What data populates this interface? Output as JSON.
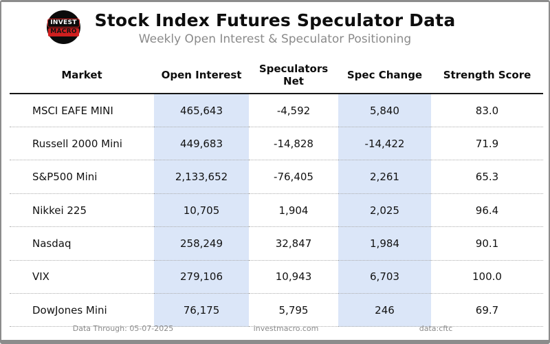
{
  "header": {
    "title": "Stock Index Futures Speculator Data",
    "subtitle": "Weekly Open Interest & Speculator Positioning",
    "logo": {
      "line1": "INVEST",
      "line2": "MACRO"
    }
  },
  "table": {
    "columns": [
      "Market",
      "Open Interest",
      "Speculators Net",
      "Spec Change",
      "Strength Score"
    ],
    "rows": [
      {
        "market": "MSCI EAFE MINI",
        "open_interest": "465,643",
        "speculators_net": "-4,592",
        "spec_change": "5,840",
        "strength_score": "83.0"
      },
      {
        "market": "Russell 2000 Mini",
        "open_interest": "449,683",
        "speculators_net": "-14,828",
        "spec_change": "-14,422",
        "strength_score": "71.9"
      },
      {
        "market": "S&P500 Mini",
        "open_interest": "2,133,652",
        "speculators_net": "-76,405",
        "spec_change": "2,261",
        "strength_score": "65.3"
      },
      {
        "market": "Nikkei 225",
        "open_interest": "10,705",
        "speculators_net": "1,904",
        "spec_change": "2,025",
        "strength_score": "96.4"
      },
      {
        "market": "Nasdaq",
        "open_interest": "258,249",
        "speculators_net": "32,847",
        "spec_change": "1,984",
        "strength_score": "90.1"
      },
      {
        "market": "VIX",
        "open_interest": "279,106",
        "speculators_net": "10,943",
        "spec_change": "6,703",
        "strength_score": "100.0"
      },
      {
        "market": "DowJones Mini",
        "open_interest": "76,175",
        "speculators_net": "5,795",
        "spec_change": "246",
        "strength_score": "69.7"
      }
    ]
  },
  "footer": {
    "data_through": "Data Through: 05-07-2025",
    "site": "investmacro.com",
    "source": "data:cftc"
  },
  "colors": {
    "band_highlight": "#dbe6f8",
    "accent_red": "#cf1f1f",
    "muted_text": "#8a8a8a",
    "border_gray": "#8c8c8c"
  },
  "chart_data": {
    "type": "table",
    "title": "Stock Index Futures Speculator Data",
    "subtitle": "Weekly Open Interest & Speculator Positioning",
    "columns": [
      "Market",
      "Open Interest",
      "Speculators Net",
      "Spec Change",
      "Strength Score"
    ],
    "rows": [
      [
        "MSCI EAFE MINI",
        465643,
        -4592,
        5840,
        83.0
      ],
      [
        "Russell 2000 Mini",
        449683,
        -14828,
        -14422,
        71.9
      ],
      [
        "S&P500 Mini",
        2133652,
        -76405,
        2261,
        65.3
      ],
      [
        "Nikkei 225",
        10705,
        1904,
        2025,
        96.4
      ],
      [
        "Nasdaq",
        258249,
        32847,
        1984,
        90.1
      ],
      [
        "VIX",
        279106,
        10943,
        6703,
        100.0
      ],
      [
        "DowJones Mini",
        76175,
        5795,
        246,
        69.7
      ]
    ],
    "highlighted_columns": [
      "Open Interest",
      "Spec Change"
    ],
    "footer_notes": [
      "Data Through: 05-07-2025",
      "investmacro.com",
      "data:cftc"
    ]
  }
}
